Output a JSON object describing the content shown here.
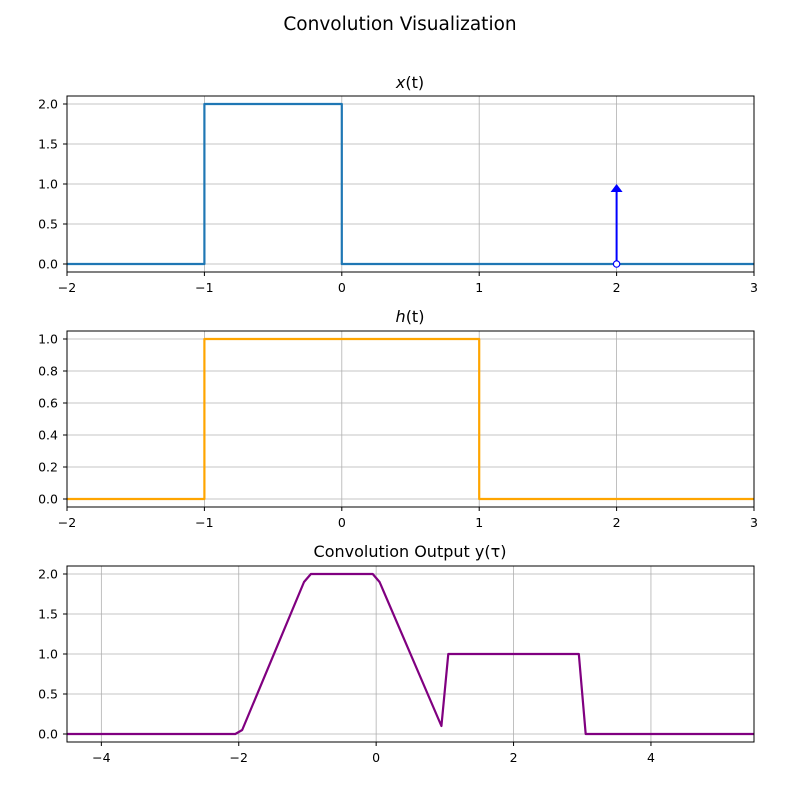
{
  "figure": {
    "title": "Convolution Visualization"
  },
  "chart_data": [
    {
      "type": "line",
      "title": "x(t)",
      "title_main": "x",
      "title_arg": "(t)",
      "xlim": [
        -2,
        3
      ],
      "ylim": [
        -0.1,
        2.1
      ],
      "x_ticks": [
        -2,
        -1,
        0,
        1,
        2,
        3
      ],
      "y_ticks": [
        0.0,
        0.5,
        1.0,
        1.5,
        2.0
      ],
      "grid": true,
      "series": [
        {
          "color": "#1f77b4",
          "x": [
            -2,
            -1,
            -1,
            0,
            0,
            3
          ],
          "y": [
            0,
            0,
            2,
            2,
            0,
            0
          ]
        }
      ],
      "impulse": {
        "x": 2,
        "height": 1,
        "color": "#0000ff"
      }
    },
    {
      "type": "line",
      "title": "h(t)",
      "title_main": "h",
      "title_arg": "(t)",
      "xlim": [
        -2,
        3
      ],
      "ylim": [
        -0.05,
        1.05
      ],
      "x_ticks": [
        -2,
        -1,
        0,
        1,
        2,
        3
      ],
      "y_ticks": [
        0.0,
        0.2,
        0.4,
        0.6,
        0.8,
        1.0
      ],
      "grid": true,
      "series": [
        {
          "color": "#ffa500",
          "x": [
            -2,
            -1,
            -1,
            1,
            1,
            3
          ],
          "y": [
            0,
            0,
            1,
            1,
            0,
            0
          ]
        }
      ]
    },
    {
      "type": "line",
      "title": "Convolution Output y(τ)",
      "title_main": "Convolution Output y",
      "title_arg": "(τ)",
      "xlim": [
        -4.5,
        5.5
      ],
      "ylim": [
        -0.1,
        2.1
      ],
      "x_ticks": [
        -4,
        -2,
        0,
        2,
        4
      ],
      "y_ticks": [
        0.0,
        0.5,
        1.0,
        1.5,
        2.0
      ],
      "grid": true,
      "series": [
        {
          "color": "#800080",
          "x": [
            -4.5,
            -2.05,
            -1.95,
            -1.05,
            -0.95,
            -0.05,
            0.05,
            0.95,
            1.05,
            2.95,
            3.05,
            5.5
          ],
          "y": [
            0,
            0,
            0.05,
            1.9,
            2.0,
            2.0,
            1.9,
            0.1,
            1.0,
            1.0,
            0,
            0
          ]
        }
      ]
    }
  ]
}
